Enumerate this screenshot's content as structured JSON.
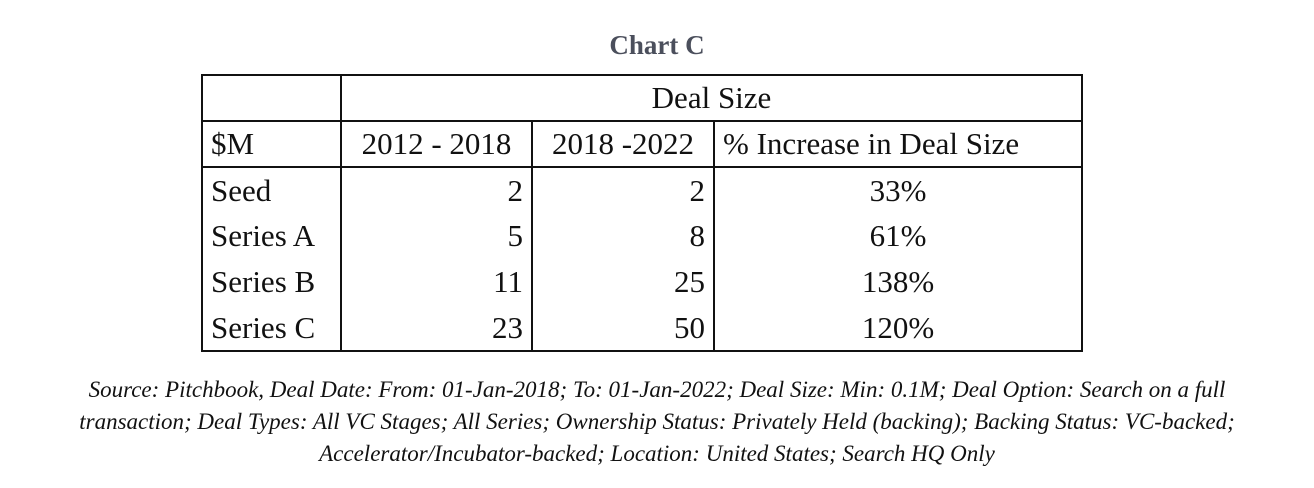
{
  "chart_data": {
    "type": "table",
    "title": "Chart C",
    "group_header": "Deal Size",
    "columns": [
      "$M",
      "2012 - 2018",
      "2018 -2022",
      "% Increase in Deal Size"
    ],
    "rows": [
      {
        "label": "Seed",
        "v2012_2018": "2",
        "v2018_2022": "2",
        "pct_increase": "33%"
      },
      {
        "label": "Series A",
        "v2012_2018": "5",
        "v2018_2022": "8",
        "pct_increase": "61%"
      },
      {
        "label": "Series B",
        "v2012_2018": "11",
        "v2018_2022": "25",
        "pct_increase": "138%"
      },
      {
        "label": "Series C",
        "v2012_2018": "23",
        "v2018_2022": "50",
        "pct_increase": "120%"
      }
    ],
    "source_lines": [
      "Source: Pitchbook, Deal Date: From: 01-Jan-2018; To: 01-Jan-2022; Deal Size: Min: 0.1M; Deal Option: Search on a full",
      "transaction; Deal Types: All VC Stages; All Series; Ownership Status: Privately Held (backing); Backing Status: VC-backed;",
      "Accelerator/Incubator-backed; Location: United States; Search HQ Only"
    ]
  }
}
